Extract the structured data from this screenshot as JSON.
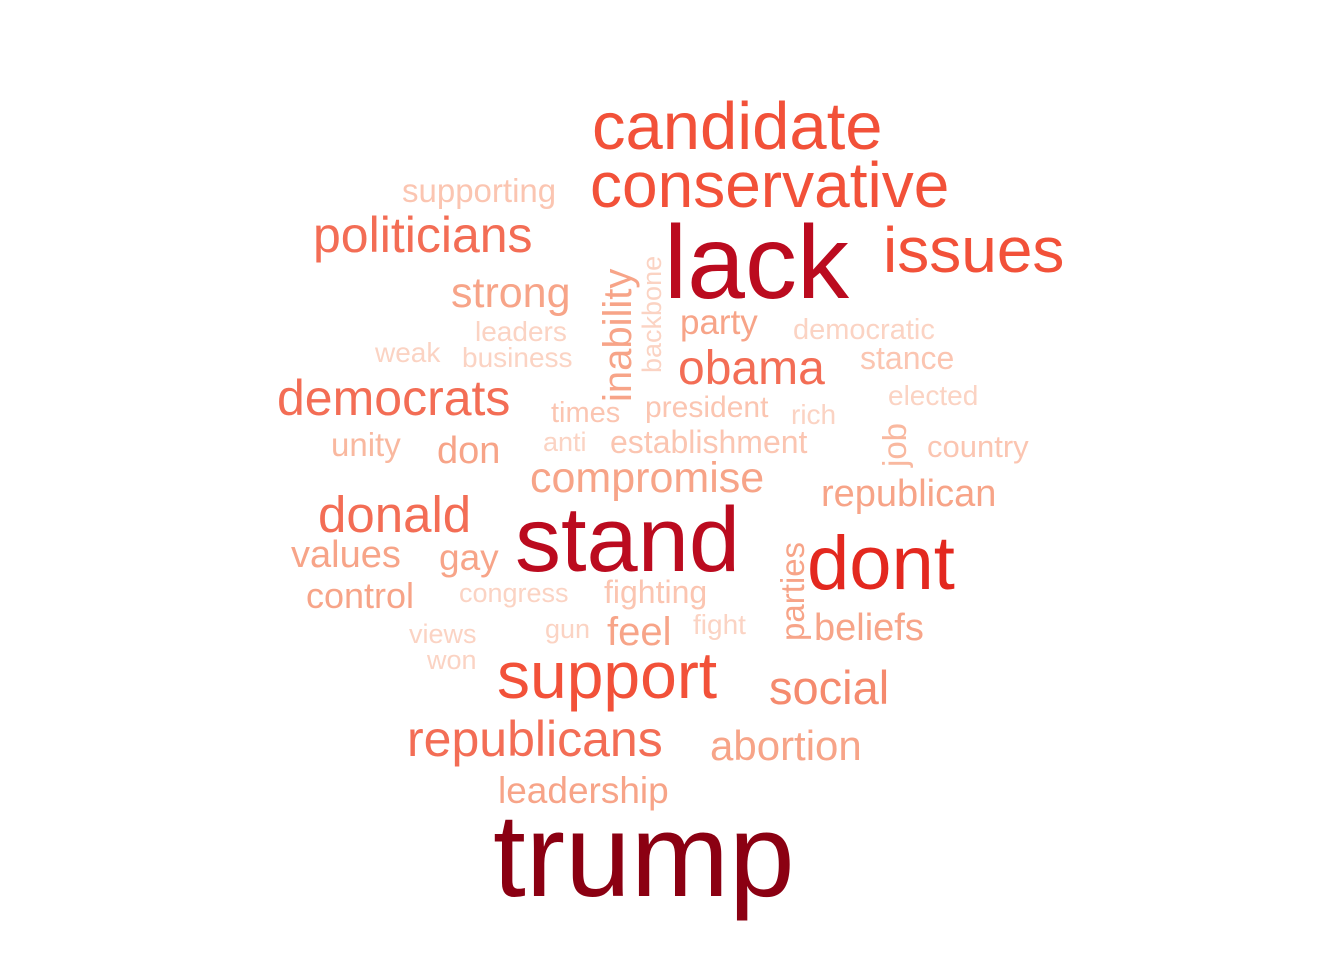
{
  "words": [
    {
      "text": "trump",
      "color": "#8b0012"
    },
    {
      "text": "lack",
      "color": "#bb0b1f"
    },
    {
      "text": "stand",
      "color": "#bb0b1f"
    },
    {
      "text": "dont",
      "color": "#e3281f"
    },
    {
      "text": "candidate",
      "color": "#f25139"
    },
    {
      "text": "conservative",
      "color": "#f25139"
    },
    {
      "text": "issues",
      "color": "#f25139"
    },
    {
      "text": "support",
      "color": "#f25139"
    },
    {
      "text": "politicians",
      "color": "#f36d55"
    },
    {
      "text": "democrats",
      "color": "#f36d55"
    },
    {
      "text": "donald",
      "color": "#f36d55"
    },
    {
      "text": "republicans",
      "color": "#f36d55"
    },
    {
      "text": "obama",
      "color": "#f36d55"
    },
    {
      "text": "social",
      "color": "#f58a6e"
    },
    {
      "text": "strong",
      "color": "#f7a488"
    },
    {
      "text": "compromise",
      "color": "#f7a488"
    },
    {
      "text": "abortion",
      "color": "#f7a488"
    },
    {
      "text": "republican",
      "color": "#f7a488"
    },
    {
      "text": "beliefs",
      "color": "#f7a488"
    },
    {
      "text": "values",
      "color": "#f7a488"
    },
    {
      "text": "gay",
      "color": "#f7a488"
    },
    {
      "text": "don",
      "color": "#f7a488"
    },
    {
      "text": "feel",
      "color": "#f7a488"
    },
    {
      "text": "leadership",
      "color": "#f7a488"
    },
    {
      "text": "inability",
      "color": "#f7a488"
    },
    {
      "text": "party",
      "color": "#f7a488"
    },
    {
      "text": "control",
      "color": "#f7a488"
    },
    {
      "text": "parties",
      "color": "#f7a488"
    },
    {
      "text": "unity",
      "color": "#f9b89f"
    },
    {
      "text": "job",
      "color": "#f9b89f"
    },
    {
      "text": "supporting",
      "color": "#fbc5b1"
    },
    {
      "text": "stance",
      "color": "#fbc5b1"
    },
    {
      "text": "establishment",
      "color": "#fbc5b1"
    },
    {
      "text": "president",
      "color": "#fbc5b1"
    },
    {
      "text": "country",
      "color": "#fbc5b1"
    },
    {
      "text": "fighting",
      "color": "#fbc5b1"
    },
    {
      "text": "times",
      "color": "#fbc5b1"
    },
    {
      "text": "leaders",
      "color": "#fbd3c3"
    },
    {
      "text": "business",
      "color": "#fbd3c3"
    },
    {
      "text": "weak",
      "color": "#fbd3c3"
    },
    {
      "text": "backbone",
      "color": "#fbd3c3"
    },
    {
      "text": "democratic",
      "color": "#fbd3c3"
    },
    {
      "text": "elected",
      "color": "#fbd3c3"
    },
    {
      "text": "rich",
      "color": "#fbd3c3"
    },
    {
      "text": "anti",
      "color": "#fbd3c3"
    },
    {
      "text": "congress",
      "color": "#fbd3c3"
    },
    {
      "text": "fight",
      "color": "#fbd3c3"
    },
    {
      "text": "gun",
      "color": "#fbd3c3"
    },
    {
      "text": "views",
      "color": "#fbd3c3"
    },
    {
      "text": "won",
      "color": "#fbd3c3"
    }
  ]
}
